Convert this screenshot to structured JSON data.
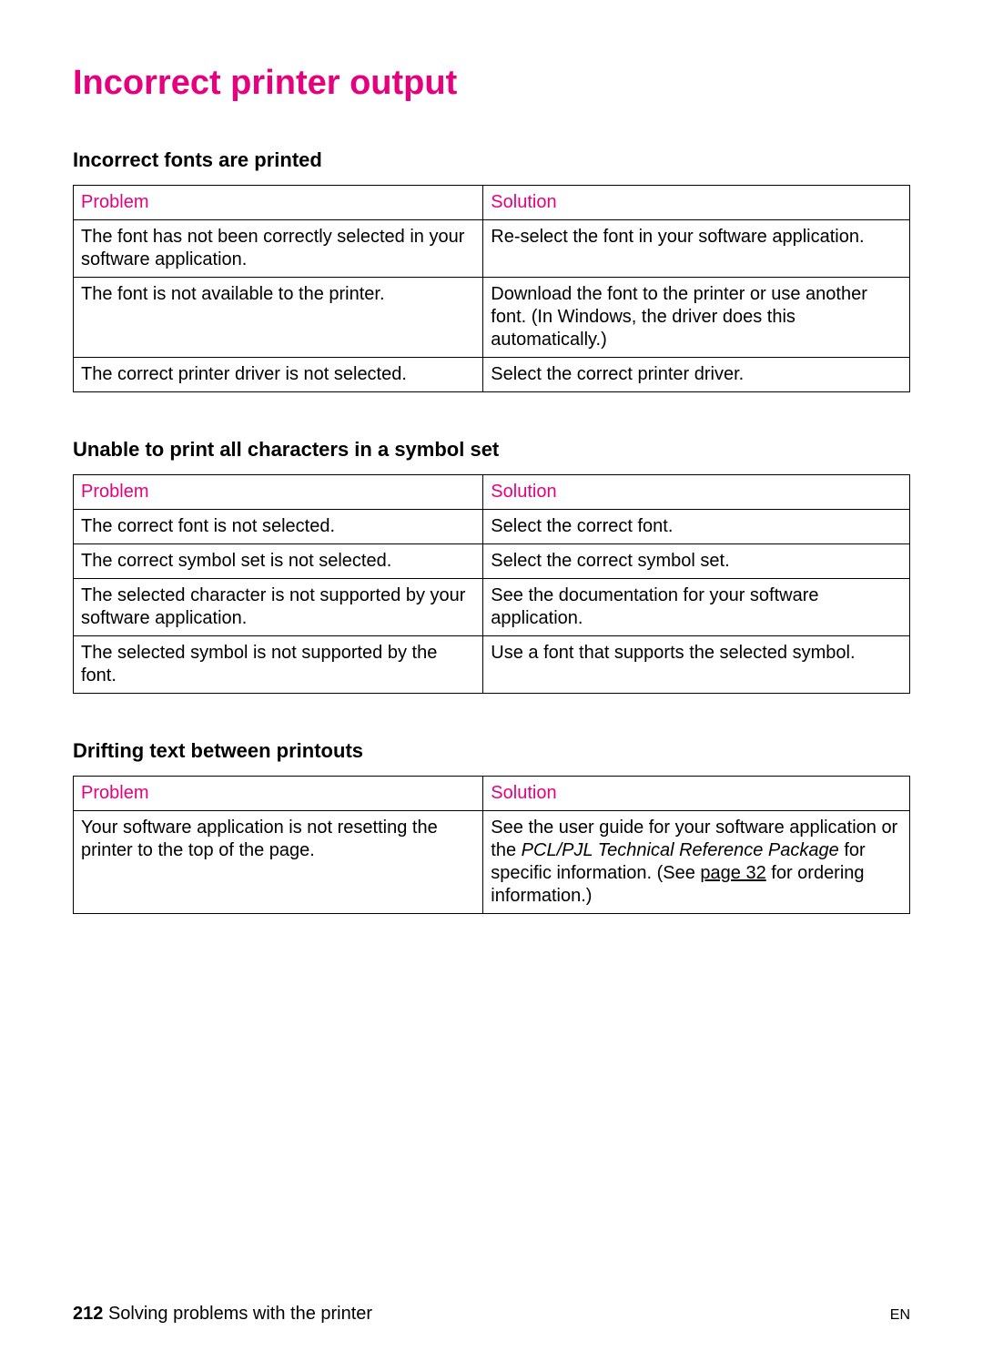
{
  "page_title": "Incorrect printer output",
  "accent_color": "#e6007e",
  "sections": {
    "fonts": {
      "heading": "Incorrect fonts are printed",
      "header_problem": "Problem",
      "header_solution": "Solution",
      "rows": [
        {
          "problem": "The font has not been correctly selected in your software application.",
          "solution": "Re-select the font in your software application."
        },
        {
          "problem": "The font is not available to the printer.",
          "solution": "Download the font to the printer or use another font. (In Windows, the driver does this automatically.)"
        },
        {
          "problem": "The correct printer driver is not selected.",
          "solution": "Select the correct printer driver."
        }
      ]
    },
    "symbols": {
      "heading": "Unable to print all characters in a symbol set",
      "header_problem": "Problem",
      "header_solution": "Solution",
      "rows": [
        {
          "problem": "The correct font is not selected.",
          "solution": "Select the correct font."
        },
        {
          "problem": "The correct symbol set is not selected.",
          "solution": "Select the correct symbol set."
        },
        {
          "problem": "The selected character is not supported by your software application.",
          "solution": "See the documentation for your software application."
        },
        {
          "problem": "The selected symbol is not supported by the font.",
          "solution": "Use a font that supports the selected symbol."
        }
      ]
    },
    "drifting": {
      "heading": "Drifting text between printouts",
      "header_problem": "Problem",
      "header_solution": "Solution",
      "row_problem": "Your software application is not resetting the printer to the top of the page.",
      "solution_part1": "See the user guide for your software application or the ",
      "solution_italic": "PCL/PJL Technical Reference Package",
      "solution_part2": " for specific information. (See ",
      "solution_link": "page 32",
      "solution_part3": " for ordering information.)"
    }
  },
  "footer": {
    "page_number": "212",
    "chapter_title": "Solving problems with the printer",
    "lang": "EN"
  }
}
